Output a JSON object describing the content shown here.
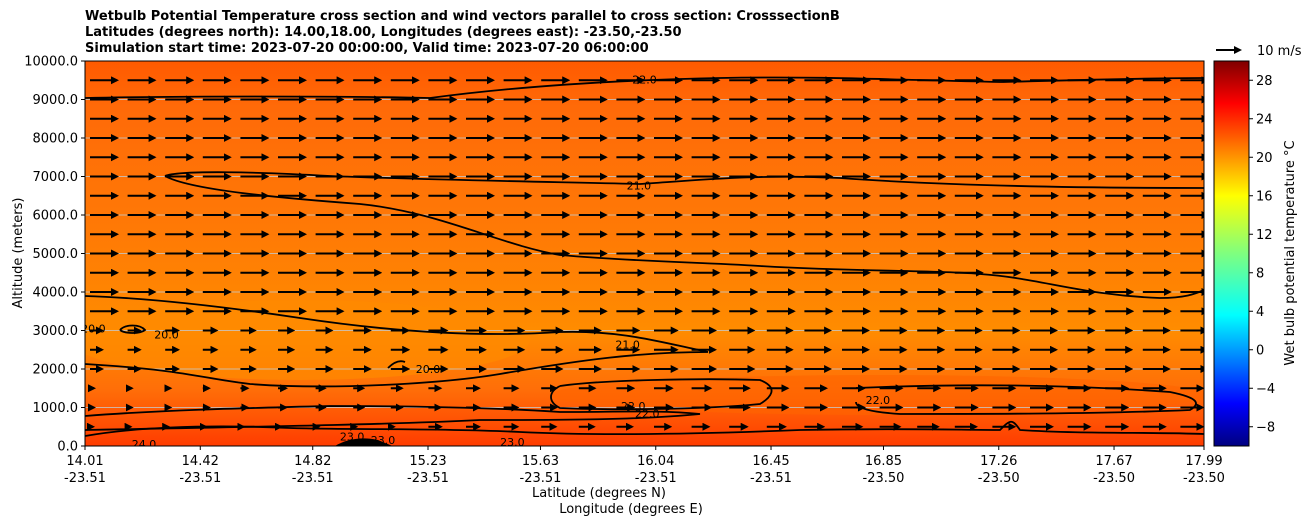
{
  "chart_data": {
    "type": "heatmap",
    "title_lines": [
      "Wetbulb Potential Temperature cross section and wind vectors parallel to cross section: CrosssectionB",
      "Latitudes (degrees north): 14.00,18.00, Longitudes (degrees east): -23.50,-23.50",
      "Simulation start time: 2023-07-20 00:00:00, Valid time: 2023-07-20 06:00:00"
    ],
    "ylabel": "Altitude (meters)",
    "xlabel_lat": "Latitude (degrees N)",
    "xlabel_lon": "Longitude (degrees E)",
    "ylim": [
      0,
      10000
    ],
    "yticks": [
      "0.0",
      "1000.0",
      "2000.0",
      "3000.0",
      "4000.0",
      "5000.0",
      "6000.0",
      "7000.0",
      "8000.0",
      "9000.0",
      "10000.0"
    ],
    "yvalues": [
      0,
      1000,
      2000,
      3000,
      4000,
      5000,
      6000,
      7000,
      8000,
      9000,
      10000
    ],
    "xticks_lat": [
      "14.01",
      "14.42",
      "14.82",
      "15.23",
      "15.63",
      "16.04",
      "16.45",
      "16.85",
      "17.26",
      "17.67",
      "17.99"
    ],
    "xticks_lon": [
      "-23.51",
      "-23.51",
      "-23.51",
      "-23.51",
      "-23.51",
      "-23.51",
      "-23.51",
      "-23.50",
      "-23.50",
      "-23.50",
      "-23.50"
    ],
    "xvalues": [
      14.01,
      14.42,
      14.82,
      15.23,
      15.63,
      16.04,
      16.45,
      16.85,
      17.26,
      17.67,
      17.99
    ],
    "xlim": [
      14.01,
      17.99
    ],
    "colorbar": {
      "label": "Wet bulb potential temperature °C",
      "range": [
        -10,
        30
      ],
      "ticks": [
        "−8",
        "−4",
        "0",
        "4",
        "8",
        "12",
        "16",
        "20",
        "24",
        "28"
      ],
      "tick_values": [
        -8,
        -4,
        0,
        4,
        8,
        12,
        16,
        20,
        24,
        28
      ]
    },
    "contour_labels": [
      {
        "text": "22.0",
        "x": 16.0,
        "y": 9520
      },
      {
        "text": "21.0",
        "x": 15.98,
        "y": 6760
      },
      {
        "text": "21.0",
        "x": 15.94,
        "y": 2630
      },
      {
        "text": "20.0",
        "x": 14.04,
        "y": 3050
      },
      {
        "text": "20.0",
        "x": 14.3,
        "y": 2900
      },
      {
        "text": "20.0",
        "x": 15.23,
        "y": 2000
      },
      {
        "text": "22.0",
        "x": 16.83,
        "y": 1200
      },
      {
        "text": "22.0",
        "x": 15.96,
        "y": 1040
      },
      {
        "text": "22.0",
        "x": 16.01,
        "y": 850
      },
      {
        "text": "23.0",
        "x": 15.53,
        "y": 100
      },
      {
        "text": "24.0",
        "x": 14.22,
        "y": 50
      },
      {
        "text": "23.0",
        "x": 14.96,
        "y": 250
      },
      {
        "text": "23.0",
        "x": 15.07,
        "y": 150
      }
    ],
    "wind_key": "10 m/s",
    "wind_rows_altitude": [
      9500,
      9000,
      8500,
      8000,
      7500,
      7000,
      6500,
      6000,
      5500,
      5000,
      4500,
      4000,
      3500,
      3000,
      2500,
      2000,
      1500,
      1000,
      500
    ]
  },
  "colors": {
    "background_field": "#ff6a0a",
    "mid_field": "#ff8000",
    "warm_field": "#ff4a00",
    "contour": "#000000"
  }
}
